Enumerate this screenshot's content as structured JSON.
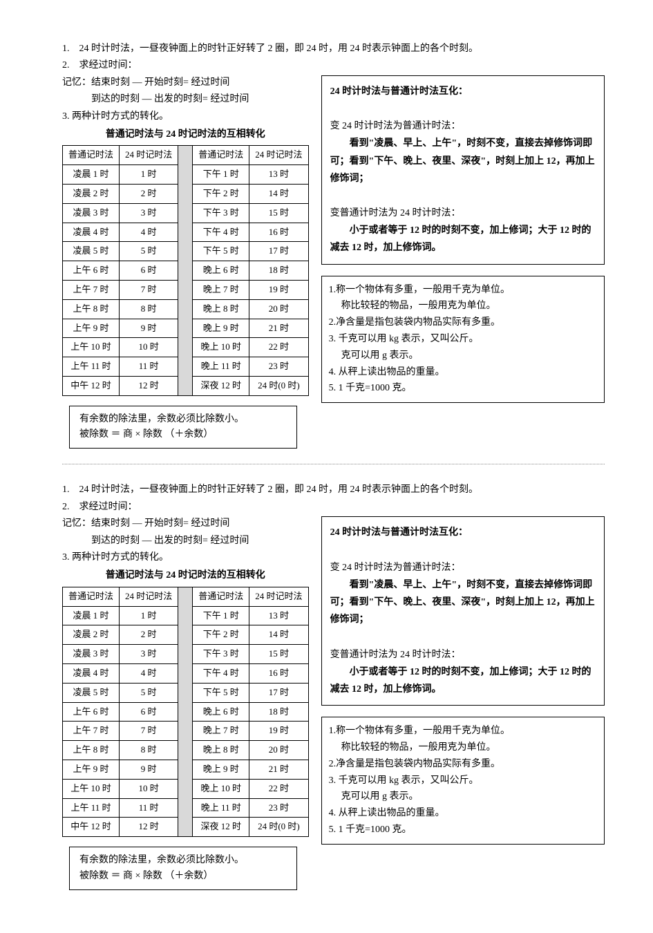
{
  "intro": {
    "line1": "1.　24 时计时法，一昼夜钟面上的时针正好转了 2 圈，即 24 时，用 24 时表示钟面上的各个时刻。",
    "line2": "2.　求经过时间：",
    "line3": "记忆：结束时刻 — 开始时刻= 经过时间",
    "line4": "到达的时刻 — 出发的时刻= 经过时间",
    "line5": "3.  两种计时方式的转化。"
  },
  "tableTitle": "普通记时法与 24 时记时法的互相转化",
  "headers": {
    "h1": "普通记时法",
    "h2": "24 时记时法"
  },
  "tableLeft": [
    [
      "凌晨 1 时",
      "1 时"
    ],
    [
      "凌晨 2 时",
      "2 时"
    ],
    [
      "凌晨 3 时",
      "3 时"
    ],
    [
      "凌晨 4 时",
      "4 时"
    ],
    [
      "凌晨 5 时",
      "5 时"
    ],
    [
      "上午 6 时",
      "6 时"
    ],
    [
      "上午 7 时",
      "7 时"
    ],
    [
      "上午 8 时",
      "8 时"
    ],
    [
      "上午 9 时",
      "9 时"
    ],
    [
      "上午 10 时",
      "10 时"
    ],
    [
      "上午 11 时",
      "11 时"
    ],
    [
      "中午 12 时",
      "12 时"
    ]
  ],
  "tableRight": [
    [
      "下午 1 时",
      "13 时"
    ],
    [
      "下午 2 时",
      "14 时"
    ],
    [
      "下午 3 时",
      "15 时"
    ],
    [
      "下午 4 时",
      "16 时"
    ],
    [
      "下午 5 时",
      "17 时"
    ],
    [
      "晚上 6 时",
      "18 时"
    ],
    [
      "晚上 7 时",
      "19 时"
    ],
    [
      "晚上 8 时",
      "20 时"
    ],
    [
      "晚上 9 时",
      "21 时"
    ],
    [
      "晚上 10 时",
      "22 时"
    ],
    [
      "晚上 11 时",
      "23 时"
    ],
    [
      "深夜 12 时",
      "24 时(0 时)"
    ]
  ],
  "note": {
    "l1": "有余数的除法里，余数必须比除数小。",
    "l2": "被除数 ＝ 商 × 除数 （＋余数）"
  },
  "box1": {
    "title": "24 时计时法与普通计时法互化：",
    "p1a": "变 24 时计时法为普通计时法：",
    "p1b": "看到\"凌晨、早上、上午\"，时刻不变，直接去掉修饰词即可；看到\"下午、晚上、夜里、深夜\"，时刻上加上 12，再加上修饰词；",
    "p2a": "变普通计时法为 24 时计时法：",
    "p2b": "小于或者等于 12 时的时刻不变，加上修词；大于 12 时的减去 12 时，加上修饰词。"
  },
  "box2": {
    "l1": "1.称一个物体有多重，一般用千克为单位。",
    "l1b": "称比较轻的物品，一般用克为单位。",
    "l2": "2.净含量是指包装袋内物品实际有多重。",
    "l3": "3.  千克可以用 kg 表示，又叫公斤。",
    "l3b": "克可以用 g 表示。",
    "l4": "4.  从秤上读出物品的重量。",
    "l5": "5.   1 千克=1000 克。"
  }
}
